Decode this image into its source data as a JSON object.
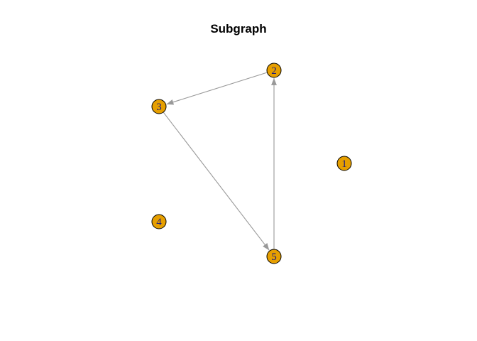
{
  "title": "Subgraph",
  "colors": {
    "node_fill": "#E69F00",
    "node_stroke": "#000000",
    "label": "#1a1a80",
    "edge": "#999999"
  },
  "directed": true,
  "nodes": [
    {
      "id": "1",
      "label": "1"
    },
    {
      "id": "2",
      "label": "2"
    },
    {
      "id": "3",
      "label": "3"
    },
    {
      "id": "4",
      "label": "4"
    },
    {
      "id": "5",
      "label": "5"
    }
  ],
  "edges": [
    {
      "from": "2",
      "to": "3"
    },
    {
      "from": "3",
      "to": "5"
    },
    {
      "from": "5",
      "to": "2"
    }
  ]
}
